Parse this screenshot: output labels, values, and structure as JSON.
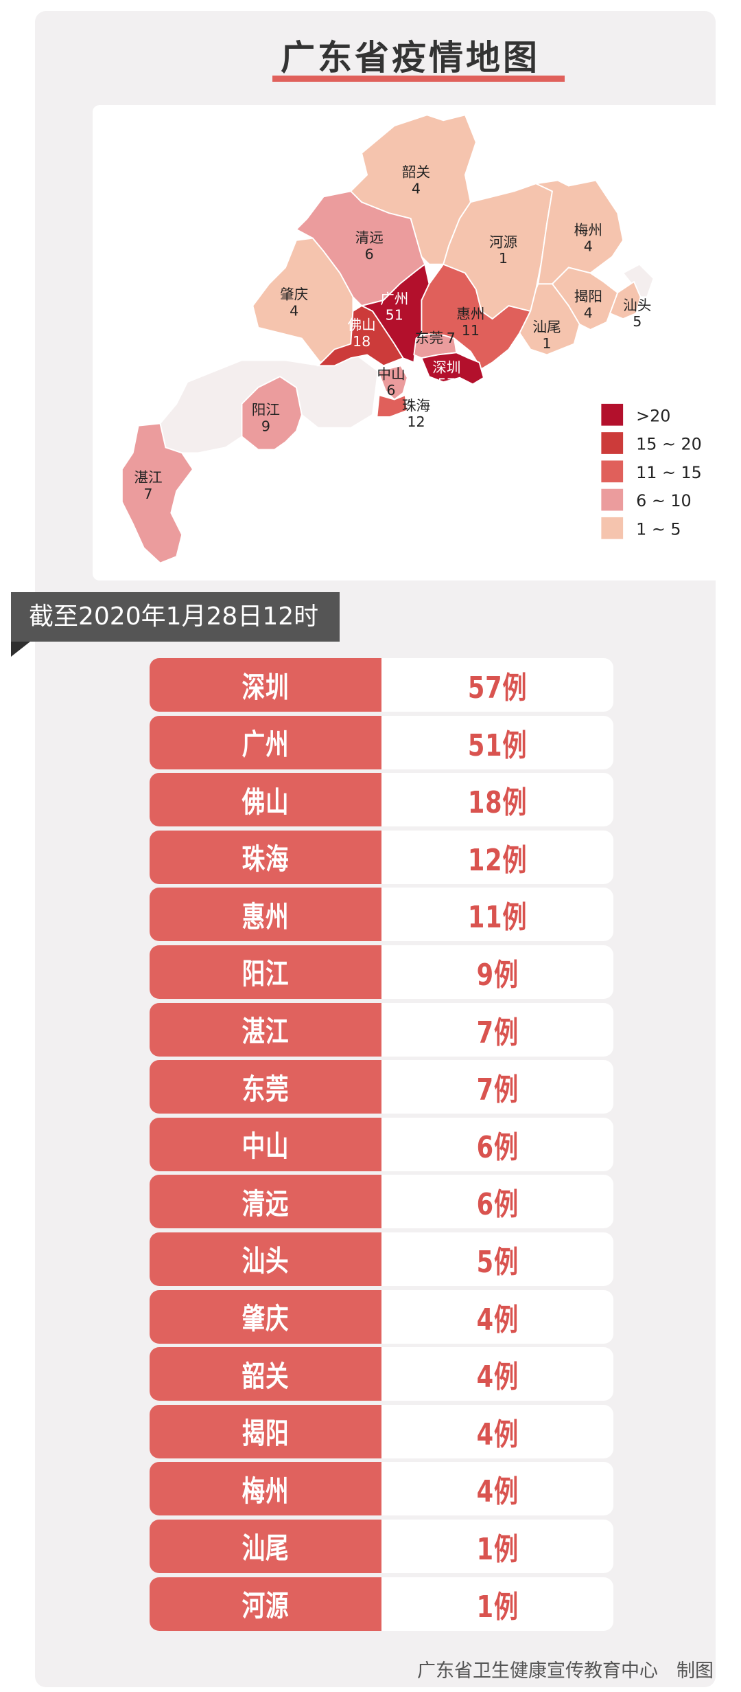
{
  "title": "广东省疫情地图",
  "as_of": "截至2020年1月28日12时",
  "footer": "广东省卫生健康宣传教育中心　制图",
  "legend": [
    {
      "label": ">20",
      "color": "#b3102c"
    },
    {
      "label": "15 ~ 20",
      "color": "#cc3b3a"
    },
    {
      "label": "11 ~ 15",
      "color": "#e0605b"
    },
    {
      "label": "6 ~ 10",
      "color": "#eb9c9d"
    },
    {
      "label": "1 ~ 5",
      "color": "#f5c4ae"
    }
  ],
  "no_data_color": "#f4eeee",
  "map_regions": [
    {
      "name": "韶关",
      "cases": "4"
    },
    {
      "name": "清远",
      "cases": "6"
    },
    {
      "name": "肇庆",
      "cases": "4"
    },
    {
      "name": "广州",
      "cases": "51"
    },
    {
      "name": "佛山",
      "cases": "18"
    },
    {
      "name": "惠州",
      "cases": "11"
    },
    {
      "name": "东莞",
      "cases": "7"
    },
    {
      "name": "深圳",
      "cases": "57"
    },
    {
      "name": "中山",
      "cases": "6"
    },
    {
      "name": "珠海",
      "cases": "12"
    },
    {
      "name": "河源",
      "cases": "1"
    },
    {
      "name": "梅州",
      "cases": "4"
    },
    {
      "name": "揭阳",
      "cases": "4"
    },
    {
      "name": "汕头",
      "cases": "5"
    },
    {
      "name": "汕尾",
      "cases": "1"
    },
    {
      "name": "阳江",
      "cases": "9"
    },
    {
      "name": "湛江",
      "cases": "7"
    }
  ],
  "table": [
    {
      "city": "深圳",
      "count": "57例"
    },
    {
      "city": "广州",
      "count": "51例"
    },
    {
      "city": "佛山",
      "count": "18例"
    },
    {
      "city": "珠海",
      "count": "12例"
    },
    {
      "city": "惠州",
      "count": "11例"
    },
    {
      "city": "阳江",
      "count": "9例"
    },
    {
      "city": "湛江",
      "count": "7例"
    },
    {
      "city": "东莞",
      "count": "7例"
    },
    {
      "city": "中山",
      "count": "6例"
    },
    {
      "city": "清远",
      "count": "6例"
    },
    {
      "city": "汕头",
      "count": "5例"
    },
    {
      "city": "肇庆",
      "count": "4例"
    },
    {
      "city": "韶关",
      "count": "4例"
    },
    {
      "city": "揭阳",
      "count": "4例"
    },
    {
      "city": "梅州",
      "count": "4例"
    },
    {
      "city": "汕尾",
      "count": "1例"
    },
    {
      "city": "河源",
      "count": "1例"
    }
  ]
}
